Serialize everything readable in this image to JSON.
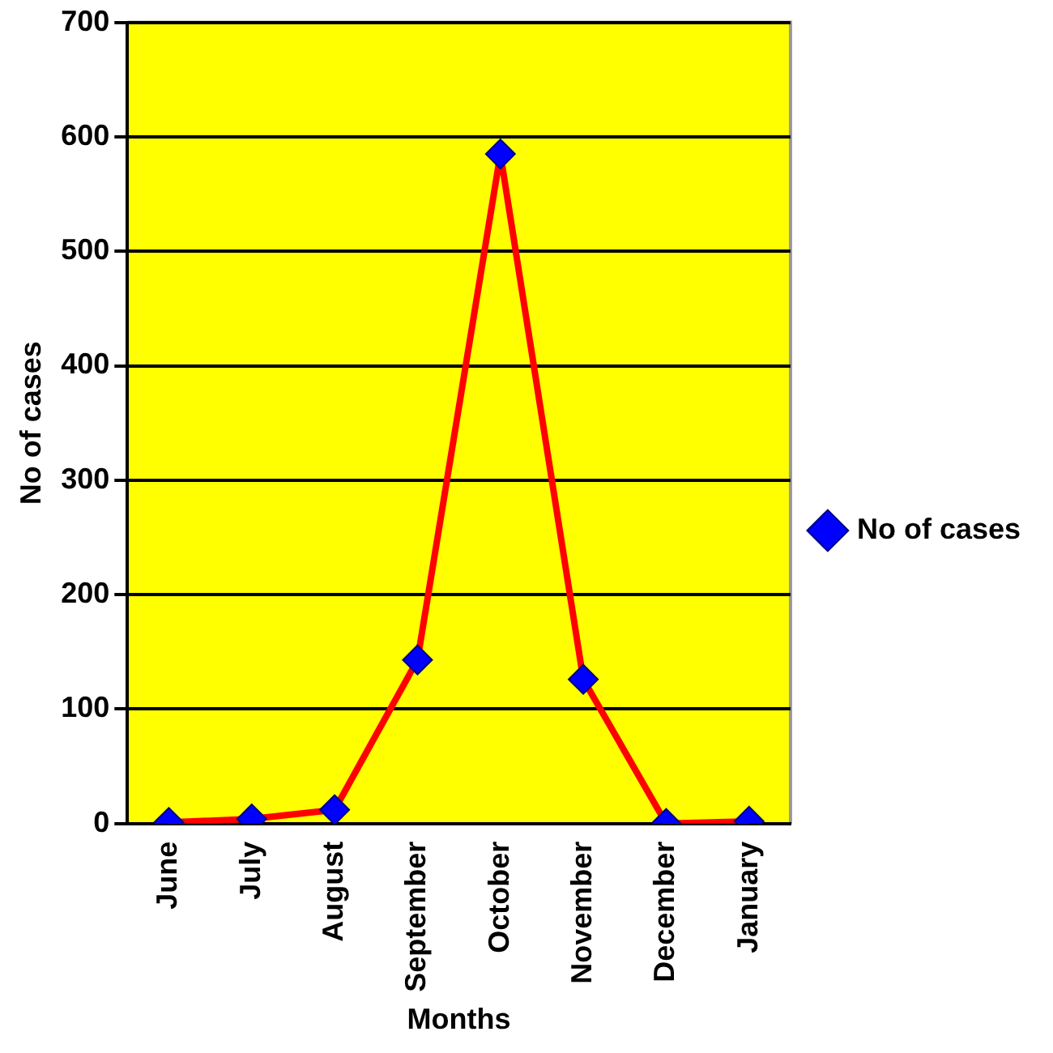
{
  "chart_data": {
    "type": "line",
    "xlabel": "Months",
    "ylabel": "No of cases",
    "categories": [
      "June",
      "July",
      "August",
      "September",
      "October",
      "November",
      "December",
      "January"
    ],
    "series": [
      {
        "name": "No of cases",
        "color": "#ff0000",
        "values": [
          1,
          4,
          12,
          143,
          585,
          126,
          0,
          2
        ]
      }
    ],
    "ylim": [
      0,
      700
    ],
    "yticks": [
      0,
      100,
      200,
      300,
      400,
      500,
      600,
      700
    ],
    "grid": "y",
    "legend": "right",
    "marker": "diamond",
    "line_style": "solid"
  }
}
